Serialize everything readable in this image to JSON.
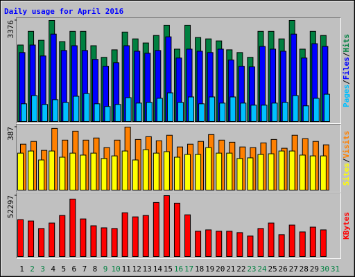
{
  "chart_data": {
    "type": "bar",
    "title": "Daily usage for April 2016",
    "categories": [
      1,
      2,
      3,
      4,
      5,
      6,
      7,
      8,
      9,
      10,
      11,
      12,
      13,
      14,
      15,
      16,
      17,
      18,
      19,
      20,
      21,
      22,
      23,
      24,
      25,
      26,
      27,
      28,
      29,
      30,
      31
    ],
    "category_colors": [
      "#000000",
      "#008040",
      "#008040",
      "#000000",
      "#000000",
      "#000000",
      "#000000",
      "#000000",
      "#008040",
      "#008040",
      "#000000",
      "#000000",
      "#000000",
      "#000000",
      "#000000",
      "#008040",
      "#008040",
      "#000000",
      "#000000",
      "#000000",
      "#000000",
      "#000000",
      "#008040",
      "#008040",
      "#000000",
      "#000000",
      "#000000",
      "#000000",
      "#000000",
      "#008040",
      "#008040"
    ],
    "legend_separator": "/",
    "panels": [
      {
        "ylim": [
          0,
          3376
        ],
        "yticks": [
          3376
        ],
        "series": [
          {
            "name": "Hits",
            "color": "#008040",
            "values": [
              2555,
              3011,
              2714,
              3376,
              2669,
              3011,
              3011,
              2532,
              2144,
              2395,
              2988,
              2760,
              2623,
              2874,
              3216,
              2418,
              3216,
              2806,
              2760,
              2692,
              2395,
              2304,
              2144,
              3011,
              3011,
              2760,
              3376,
              2418,
              3011,
              2874,
              null
            ]
          },
          {
            "name": "Files",
            "color": "#0000ff",
            "values": [
              2304,
              2555,
              2190,
              2920,
              2372,
              2532,
              2372,
              2076,
              1848,
              1962,
              2532,
              2349,
              2281,
              2372,
              2829,
              2121,
              2418,
              2349,
              2304,
              2418,
              2053,
              1848,
              1825,
              2509,
              2418,
              2349,
              2920,
              2121,
              2600,
              2509,
              null
            ]
          },
          {
            "name": "Pages",
            "color": "#00c0ff",
            "values": [
              593,
              867,
              570,
              730,
              639,
              844,
              935,
              593,
              502,
              570,
              798,
              616,
              639,
              776,
              958,
              639,
              821,
              593,
              821,
              616,
              821,
              616,
              547,
              547,
              616,
              639,
              867,
              525,
              776,
              912,
              null
            ]
          }
        ]
      },
      {
        "ylim": [
          0,
          387
        ],
        "yticks": [
          387
        ],
        "series": [
          {
            "name": "Visits",
            "color": "#ff8000",
            "values": [
              282,
              299,
              244,
              379,
              307,
              362,
              307,
              320,
              261,
              307,
              387,
              311,
              328,
              303,
              337,
              265,
              282,
              299,
              341,
              307,
              294,
              265,
              261,
              290,
              311,
              257,
              337,
              316,
              299,
              278,
              null
            ]
          },
          {
            "name": "Sites",
            "color": "#ffff00",
            "values": [
              227,
              240,
              185,
              240,
              202,
              227,
              215,
              227,
              194,
              210,
              240,
              185,
              248,
              227,
              236,
              202,
              219,
              219,
              261,
              227,
              227,
              194,
              198,
              219,
              223,
              240,
              240,
              215,
              210,
              210,
              null
            ]
          }
        ]
      },
      {
        "ylim": [
          0,
          52297
        ],
        "yticks": [
          52297
        ],
        "series": [
          {
            "name": "KBytes",
            "color": "#ff0000",
            "values": [
              31730,
              30549,
              24090,
              28789,
              35256,
              49360,
              32319,
              26442,
              24680,
              24090,
              37607,
              34081,
              35256,
              46421,
              52297,
              45834,
              35844,
              21742,
              22917,
              21742,
              21742,
              20566,
              17628,
              24090,
              28789,
              18803,
              27030,
              21154,
              25267,
              22917,
              null
            ]
          }
        ]
      }
    ]
  }
}
